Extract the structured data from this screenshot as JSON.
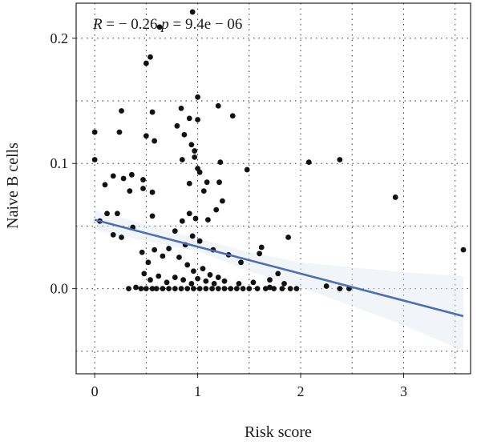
{
  "chart_data": {
    "type": "scatter",
    "title": "",
    "xlabel": "Risk score",
    "ylabel": "Naive B cells",
    "xlim": [
      -0.18,
      3.65
    ],
    "ylim": [
      -0.068,
      0.228
    ],
    "xticks": [
      0,
      1,
      2,
      3
    ],
    "xtick_labels": [
      "0",
      "1",
      "2",
      "3"
    ],
    "yticks": [
      0.0,
      0.1,
      0.2
    ],
    "ytick_labels": [
      "0.0",
      "0.1",
      "0.2"
    ],
    "grid": true,
    "grid_style": "dotted",
    "annotation": "R = − 0.26  p = 9.4e − 06",
    "colors": {
      "points": "#111111",
      "fit_line": "#4a6fb5",
      "confidence_band": "#dfe6f2"
    },
    "regression": {
      "x": [
        0.0,
        3.58
      ],
      "y": [
        0.055,
        -0.022
      ]
    },
    "confidence_band": {
      "x": [
        0.0,
        0.5,
        1.0,
        1.5,
        2.0,
        2.5,
        3.0,
        3.58
      ],
      "upper": [
        0.063,
        0.051,
        0.04,
        0.029,
        0.021,
        0.017,
        0.013,
        0.01
      ],
      "lower": [
        0.047,
        0.038,
        0.03,
        0.014,
        0.001,
        -0.014,
        -0.029,
        -0.05
      ]
    },
    "points": [
      [
        0.95,
        0.221
      ],
      [
        0.63,
        0.209
      ],
      [
        0.54,
        0.185
      ],
      [
        0.5,
        0.18
      ],
      [
        1.0,
        0.153
      ],
      [
        0.26,
        0.142
      ],
      [
        0.84,
        0.144
      ],
      [
        1.2,
        0.146
      ],
      [
        1.34,
        0.138
      ],
      [
        0.56,
        0.141
      ],
      [
        0.8,
        0.13
      ],
      [
        0.92,
        0.136
      ],
      [
        1.0,
        0.135
      ],
      [
        0.0,
        0.125
      ],
      [
        0.24,
        0.125
      ],
      [
        0.5,
        0.122
      ],
      [
        0.58,
        0.118
      ],
      [
        0.87,
        0.123
      ],
      [
        0.94,
        0.115
      ],
      [
        0.97,
        0.11
      ],
      [
        0.97,
        0.105
      ],
      [
        1.0,
        0.096
      ],
      [
        0.0,
        0.103
      ],
      [
        0.1,
        0.083
      ],
      [
        0.36,
        0.091
      ],
      [
        0.47,
        0.087
      ],
      [
        0.85,
        0.103
      ],
      [
        1.02,
        0.093
      ],
      [
        1.22,
        0.101
      ],
      [
        1.48,
        0.095
      ],
      [
        2.08,
        0.101
      ],
      [
        2.38,
        0.103
      ],
      [
        2.92,
        0.073
      ],
      [
        3.58,
        0.031
      ],
      [
        0.18,
        0.09
      ],
      [
        0.28,
        0.088
      ],
      [
        0.34,
        0.078
      ],
      [
        0.47,
        0.08
      ],
      [
        0.56,
        0.077
      ],
      [
        0.92,
        0.084
      ],
      [
        1.06,
        0.078
      ],
      [
        1.09,
        0.085
      ],
      [
        1.21,
        0.085
      ],
      [
        0.12,
        0.06
      ],
      [
        0.22,
        0.06
      ],
      [
        0.05,
        0.054
      ],
      [
        0.18,
        0.043
      ],
      [
        0.26,
        0.041
      ],
      [
        0.37,
        0.049
      ],
      [
        0.56,
        0.058
      ],
      [
        0.78,
        0.046
      ],
      [
        0.85,
        0.054
      ],
      [
        0.92,
        0.06
      ],
      [
        0.98,
        0.056
      ],
      [
        1.1,
        0.055
      ],
      [
        1.18,
        0.063
      ],
      [
        1.24,
        0.07
      ],
      [
        0.72,
        0.032
      ],
      [
        0.88,
        0.035
      ],
      [
        0.95,
        0.042
      ],
      [
        1.02,
        0.038
      ],
      [
        1.15,
        0.031
      ],
      [
        1.3,
        0.027
      ],
      [
        1.42,
        0.021
      ],
      [
        1.6,
        0.028
      ],
      [
        1.62,
        0.033
      ],
      [
        1.88,
        0.041
      ],
      [
        1.78,
        0.012
      ],
      [
        0.46,
        0.029
      ],
      [
        0.52,
        0.021
      ],
      [
        0.58,
        0.031
      ],
      [
        0.66,
        0.026
      ],
      [
        0.82,
        0.025
      ],
      [
        0.9,
        0.019
      ],
      [
        0.96,
        0.014
      ],
      [
        1.05,
        0.016
      ],
      [
        1.12,
        0.011
      ],
      [
        1.2,
        0.009
      ],
      [
        0.48,
        0.012
      ],
      [
        0.54,
        0.007
      ],
      [
        0.62,
        0.01
      ],
      [
        0.7,
        0.005
      ],
      [
        0.78,
        0.009
      ],
      [
        0.86,
        0.007
      ],
      [
        0.94,
        0.004
      ],
      [
        1.0,
        0.008
      ],
      [
        1.08,
        0.006
      ],
      [
        1.16,
        0.004
      ],
      [
        1.26,
        0.006
      ],
      [
        1.4,
        0.004
      ],
      [
        1.54,
        0.005
      ],
      [
        1.7,
        0.007
      ],
      [
        1.84,
        0.004
      ],
      [
        2.25,
        0.002
      ],
      [
        2.38,
        0.0
      ],
      [
        2.47,
        0.0
      ],
      [
        0.33,
        0.0
      ],
      [
        0.45,
        0.0
      ],
      [
        0.5,
        0.0
      ],
      [
        0.56,
        0.0
      ],
      [
        0.6,
        0.0
      ],
      [
        0.66,
        0.0
      ],
      [
        0.72,
        0.0
      ],
      [
        0.78,
        0.0
      ],
      [
        0.84,
        0.0
      ],
      [
        0.9,
        0.0
      ],
      [
        0.96,
        0.0
      ],
      [
        1.02,
        0.0
      ],
      [
        1.08,
        0.0
      ],
      [
        1.14,
        0.0
      ],
      [
        1.2,
        0.0
      ],
      [
        1.26,
        0.0
      ],
      [
        1.32,
        0.0
      ],
      [
        1.38,
        0.0
      ],
      [
        1.44,
        0.0
      ],
      [
        1.5,
        0.0
      ],
      [
        1.58,
        0.0
      ],
      [
        1.66,
        0.0
      ],
      [
        1.74,
        0.0
      ],
      [
        1.82,
        0.0
      ],
      [
        1.9,
        0.0
      ],
      [
        1.96,
        0.0
      ],
      [
        0.4,
        0.001
      ],
      [
        1.7,
        0.001
      ]
    ]
  }
}
